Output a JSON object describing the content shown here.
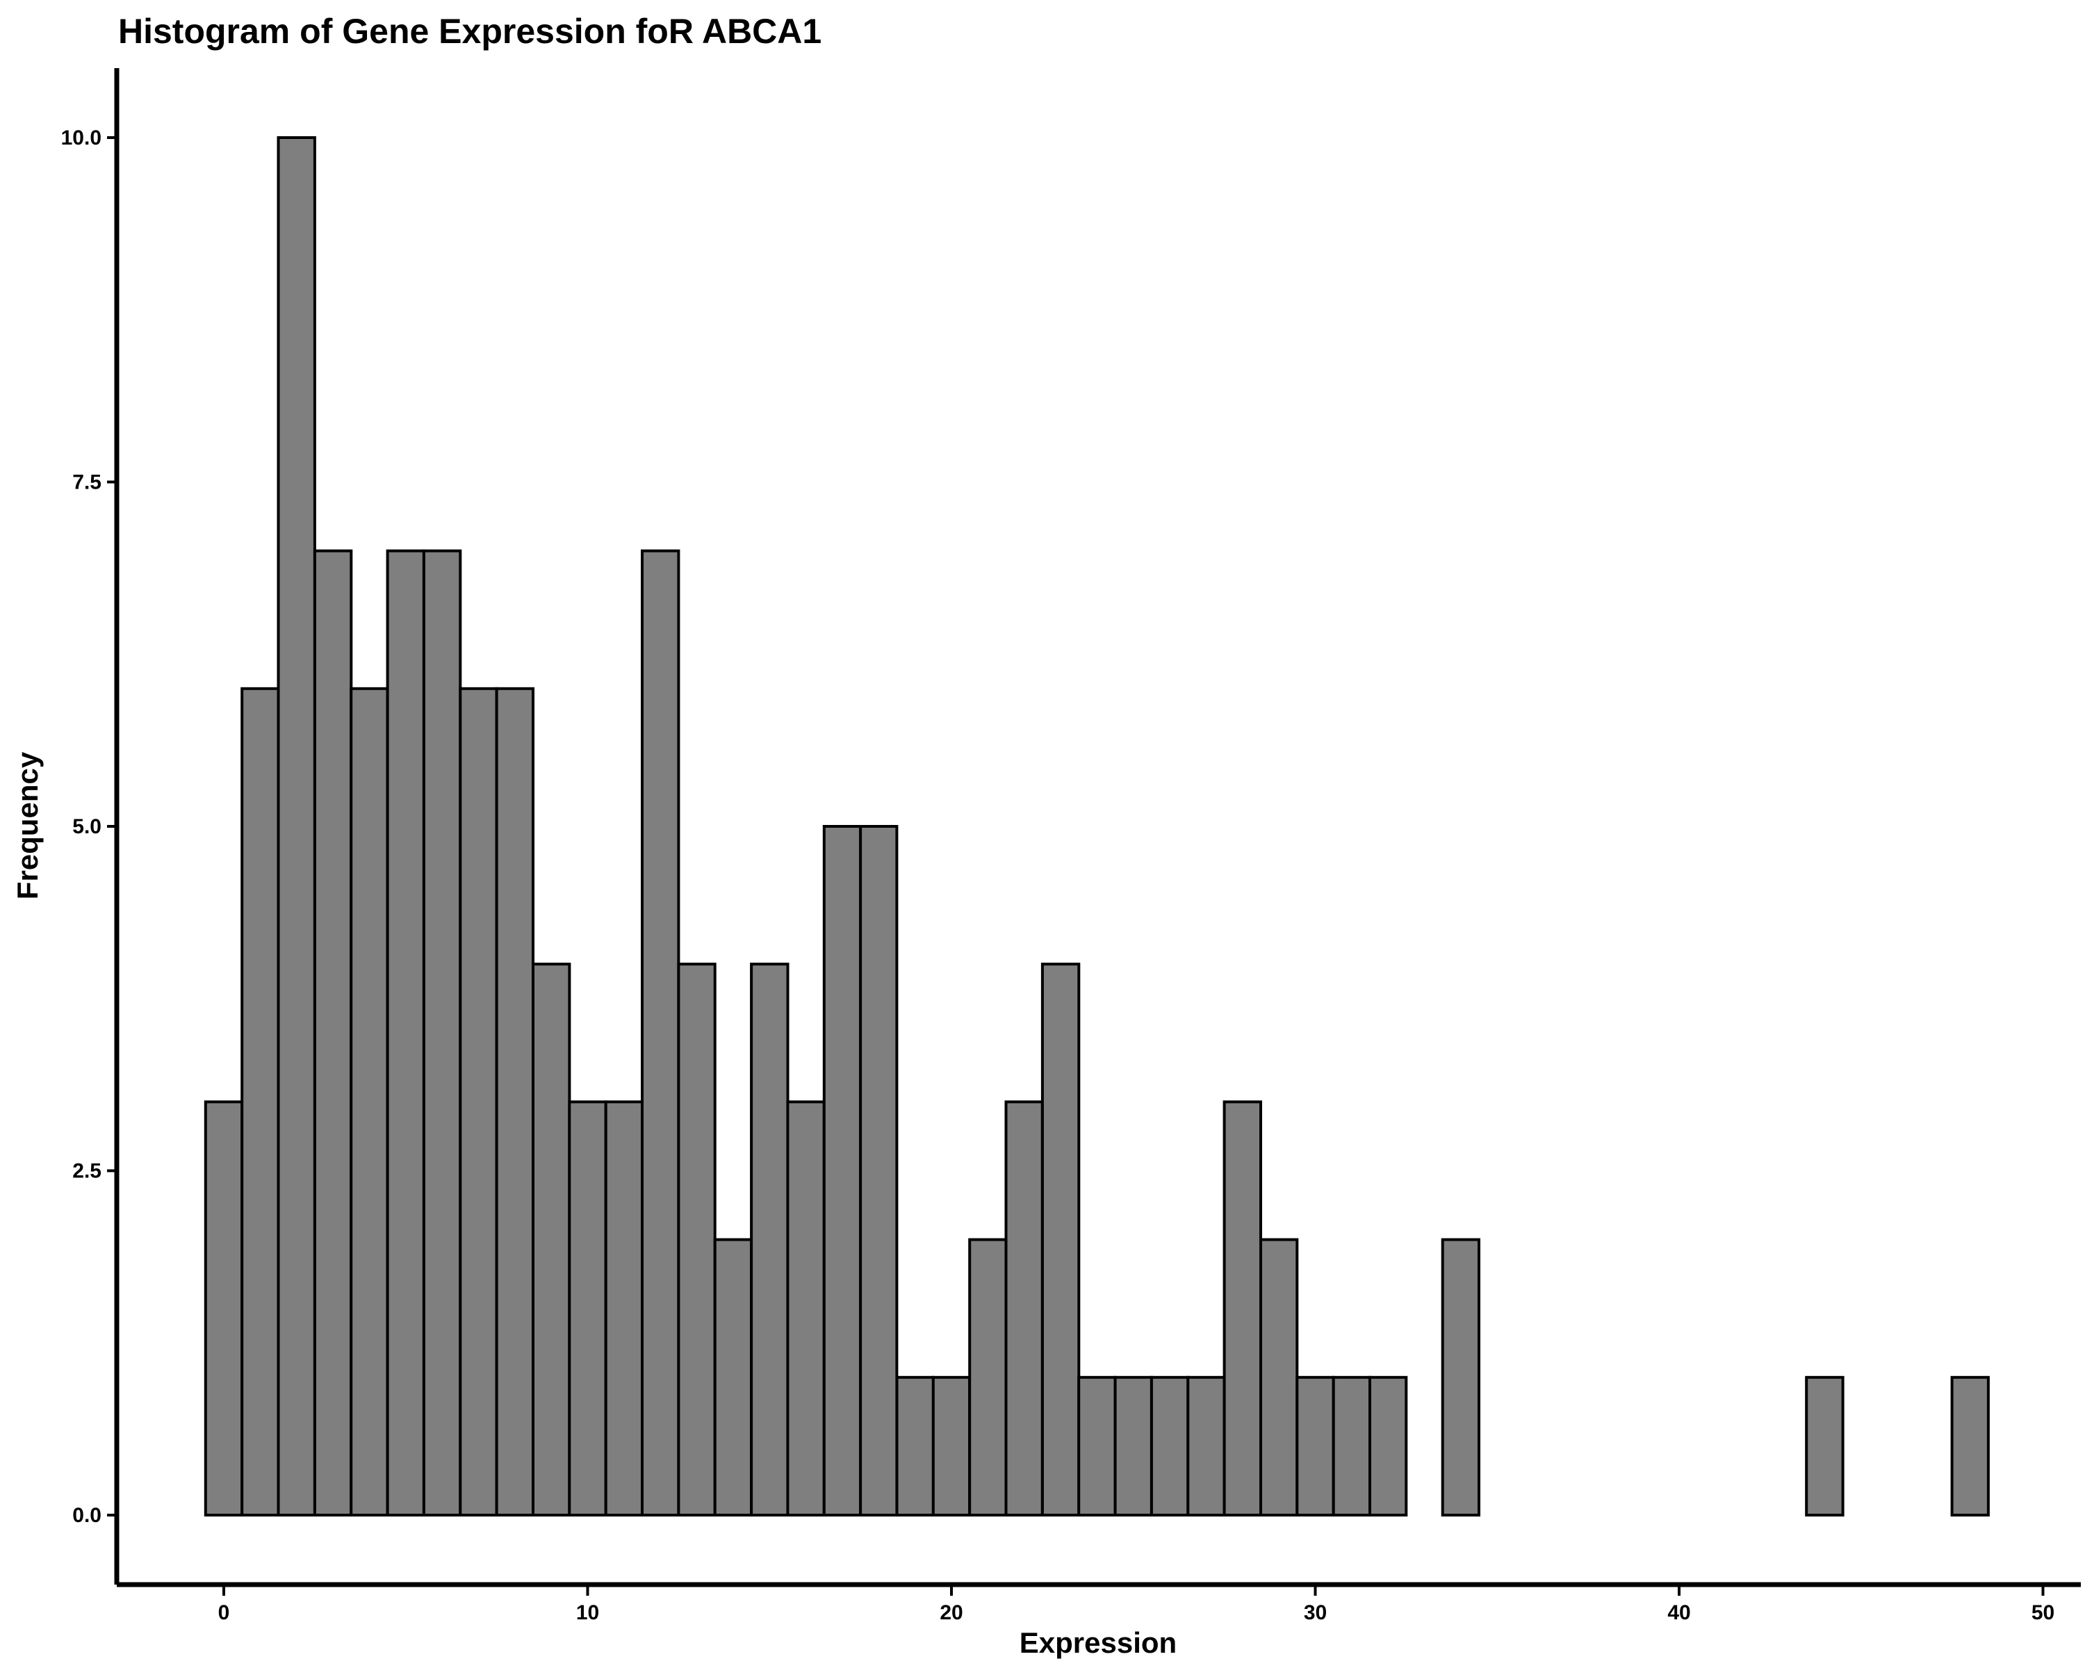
{
  "chart_data": {
    "type": "bar",
    "title": "Histogram of Gene Expression foR ABCA1",
    "xlabel": "Expression",
    "ylabel": "Frequency",
    "binwidth": 1,
    "bin_centers": [
      0,
      1,
      2,
      3,
      4,
      5,
      6,
      7,
      8,
      9,
      10,
      11,
      12,
      13,
      14,
      15,
      16,
      17,
      18,
      19,
      20,
      21,
      22,
      23,
      24,
      25,
      26,
      27,
      28,
      29,
      30,
      31,
      32,
      33,
      34,
      35,
      36,
      37,
      38,
      39,
      40,
      41,
      42,
      43,
      44,
      45,
      46,
      47,
      48
    ],
    "values": [
      3,
      6,
      10,
      7,
      6,
      7,
      7,
      6,
      6,
      4,
      3,
      3,
      7,
      4,
      2,
      4,
      3,
      5,
      5,
      1,
      1,
      2,
      3,
      4,
      1,
      1,
      1,
      1,
      3,
      2,
      1,
      1,
      1,
      0,
      2,
      0,
      0,
      0,
      0,
      0,
      0,
      0,
      0,
      0,
      1,
      0,
      0,
      0,
      1
    ],
    "xlim": [
      -3,
      51
    ],
    "ylim": [
      -0.5,
      10.5
    ],
    "xticks": [
      0,
      10,
      20,
      30,
      40,
      50
    ],
    "xtick_labels": [
      "0",
      "10",
      "20",
      "30",
      "40",
      "50"
    ],
    "yticks": [
      0,
      2.5,
      5,
      7.5,
      10
    ],
    "ytick_labels": [
      "0.0",
      "2.5",
      "5.0",
      "7.5",
      "10.0"
    ],
    "grid": false,
    "legend": "none",
    "colors": {
      "fill": "#7f7f7f",
      "edge": "#000000"
    }
  }
}
